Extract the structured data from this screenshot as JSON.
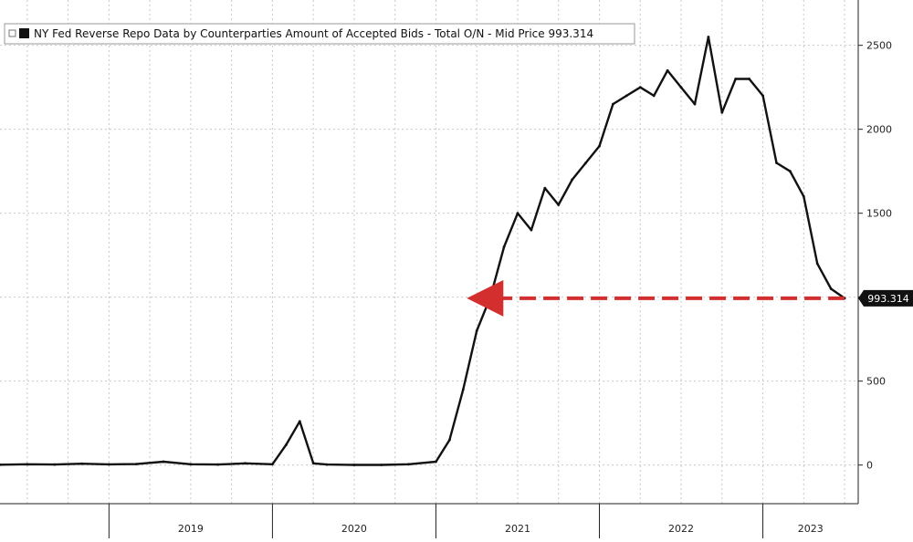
{
  "chart_data": {
    "type": "line",
    "title": "",
    "legend": {
      "entries": [
        "NY Fed Reverse Repo Data by Counterparties Amount of Accepted Bids - Total O/N - Mid Price 993.314"
      ],
      "placement": "top-left",
      "marker_color": "#111111"
    },
    "xlabel": "",
    "ylabel": "",
    "x_tick_labels": [
      "2019",
      "2020",
      "2021",
      "2022",
      "2023"
    ],
    "y_ticks": [
      0,
      500,
      1000,
      1500,
      2000,
      2500
    ],
    "y_tick_labels": [
      "0",
      "500",
      "1000",
      "1500",
      "2000",
      "2500"
    ],
    "ylim": [
      -230,
      2770
    ],
    "xlim": [
      "2018-05",
      "2023-08"
    ],
    "grid": true,
    "y_axis_side": "right",
    "series": [
      {
        "name": "Total O/N - Mid Price",
        "color": "#111111",
        "x": [
          "2018-05",
          "2018-07",
          "2018-09",
          "2018-11",
          "2019-01",
          "2019-03",
          "2019-05",
          "2019-07",
          "2019-09",
          "2019-11",
          "2020-01",
          "2020-02",
          "2020-03",
          "2020-04",
          "2020-05",
          "2020-07",
          "2020-09",
          "2020-11",
          "2021-01",
          "2021-02",
          "2021-03",
          "2021-04",
          "2021-05",
          "2021-06",
          "2021-07",
          "2021-08",
          "2021-09",
          "2021-10",
          "2021-11",
          "2021-12",
          "2022-01",
          "2022-02",
          "2022-03",
          "2022-04",
          "2022-05",
          "2022-06",
          "2022-07",
          "2022-08",
          "2022-09",
          "2022-10",
          "2022-11",
          "2022-12",
          "2023-01",
          "2023-02",
          "2023-03",
          "2023-04",
          "2023-05",
          "2023-06",
          "2023-07"
        ],
        "values": [
          2,
          5,
          3,
          8,
          4,
          6,
          20,
          5,
          3,
          10,
          5,
          120,
          260,
          10,
          3,
          1,
          1,
          5,
          20,
          150,
          450,
          800,
          1000,
          1300,
          1500,
          1400,
          1650,
          1550,
          1700,
          1800,
          1900,
          2150,
          2200,
          2250,
          2200,
          2350,
          2250,
          2150,
          2550,
          2100,
          2300,
          2300,
          2200,
          1800,
          1750,
          1600,
          1200,
          1050,
          993.314
        ]
      }
    ],
    "annotations": [
      {
        "type": "arrow",
        "direction": "left",
        "style": "dashed",
        "color": "#d32f2f",
        "value": 993.314
      },
      {
        "type": "last-value-label",
        "text": "993.314",
        "value": 993.314
      }
    ]
  }
}
